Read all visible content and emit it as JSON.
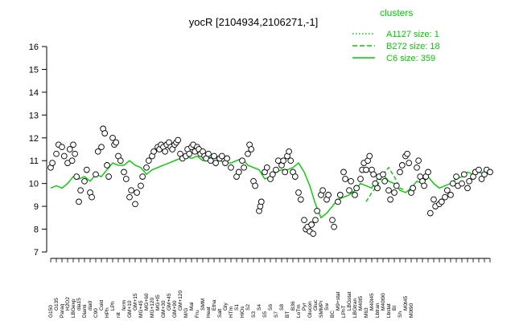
{
  "chart_data": {
    "type": "line",
    "title": "yocR [2104934,2106271,-1]",
    "xlabel": "",
    "ylabel": "",
    "ylim": [
      7,
      16
    ],
    "yticks": [
      7,
      8,
      9,
      10,
      11,
      12,
      13,
      14,
      15,
      16
    ],
    "grid": false,
    "legend": {
      "placement": "top-right",
      "title": "clusters",
      "entries": [
        {
          "label": "A1127 size: 1",
          "style": "dotted"
        },
        {
          "label": "B272 size: 18",
          "style": "dashed"
        },
        {
          "label": "C6 size: 359",
          "style": "solid"
        }
      ]
    },
    "colors": {
      "series": "#00cc00",
      "points": "#000000",
      "point_fill": "#ffffff"
    },
    "x_tick_labels": [
      "G150",
      "G135",
      "G180",
      "Paraq",
      "H2O2",
      "Oxctl",
      "LBGexp",
      "dia15",
      "Diami",
      "dia0",
      "C90",
      "Cold",
      "C30",
      "HPh",
      "LPh",
      "aero",
      "nit",
      "ferm",
      "GM+10",
      "GM+15",
      "M9+ran",
      "MG+45",
      "MG+60",
      "MG+90",
      "MG+120",
      "MG+t5",
      "GM+25",
      "GM+30",
      "GM+45",
      "GM+60",
      "GM+90",
      "GM+120",
      "M/G",
      "Mal",
      "Fru",
      "SMM",
      "Glu",
      "Heat",
      "Etha",
      "Salt",
      "Gly",
      "BMM",
      "HTm",
      "S1",
      "HiOs",
      "S2",
      "S3",
      "S4",
      "S5",
      "S6",
      "S7",
      "S8",
      "S9",
      "BT",
      "B36",
      "B80",
      "LoTm",
      "Pyr",
      "Glucon",
      "Gluc",
      "SMMPr",
      "Sw",
      "BC",
      "M9+stat",
      "LPhT",
      "LBGstat",
      "LBGtran",
      "M40t5",
      "M63",
      "M40t45",
      "Lbtran",
      "M40t90",
      "Lbstat",
      "BI",
      "Sh",
      "M0t45",
      "M0t90",
      "UNK1",
      "dia5"
    ],
    "x_tick_rows": [
      [
        "G150",
        "",
        "Paraq",
        "",
        "LBGexp",
        "",
        "Diami",
        "",
        "C90",
        "",
        "HPh",
        "",
        "nit",
        "",
        "GM+10",
        "",
        "MG+45",
        "",
        "MG+120",
        "",
        "GM+30",
        "",
        "GM+90",
        "",
        "M/G",
        "",
        "Fru",
        "",
        "Heat",
        "",
        "Salt",
        "",
        "HTm",
        "",
        "HiOs",
        "",
        "S3",
        "",
        "S5",
        "",
        "S7",
        "",
        "BT",
        "",
        "LoTm",
        "",
        "Glucon",
        "",
        "SMMPr",
        "",
        "BC",
        "",
        "LPhT",
        "",
        "LBGtran",
        "",
        "M63",
        "",
        "Lbtran",
        "",
        "Lbstat",
        "",
        "Sh",
        "",
        "M0t90"
      ],
      [
        "",
        "G135",
        "",
        "H2O2",
        "",
        "dia15",
        "",
        "dia0",
        "",
        "Cold",
        "",
        "LPh",
        "",
        "ferm",
        "",
        "GM+15",
        "",
        "MG+60",
        "",
        "MG+t5",
        "",
        "GM+45",
        "",
        "GM+120",
        "",
        "Mal",
        "",
        "SMM",
        "",
        "Etha",
        "",
        "Gly",
        "",
        "S1",
        "",
        "S2",
        "",
        "S4",
        "",
        "S6",
        "",
        "S8",
        "",
        "B36",
        "",
        "Pyr",
        "",
        "Gluc",
        "",
        "Sw",
        "",
        "M9+stat",
        "",
        "LBGstat",
        "",
        "M40t5",
        "",
        "M40t45",
        "",
        "M40t90",
        "",
        "BI",
        "",
        "M0t45",
        ""
      ]
    ],
    "c6_line": [
      9.8,
      9.9,
      9.8,
      10.0,
      10.3,
      10.2,
      10.3,
      10.1,
      10.4,
      10.3,
      10.6,
      10.9,
      10.8,
      10.8,
      11.0,
      10.8,
      10.7,
      10.4,
      10.6,
      10.7,
      10.8,
      10.9,
      11.0,
      11.1,
      11.2,
      11.1,
      11.2,
      11.0,
      11.1,
      11.2,
      11.0,
      10.9,
      10.9,
      11.0,
      11.1,
      10.8,
      10.7,
      10.6,
      10.2,
      10.3,
      10.5,
      10.6,
      10.6,
      10.7,
      10.9,
      10.5,
      9.9,
      9.1,
      8.5,
      8.7,
      9.0,
      9.3,
      9.4,
      9.5,
      9.7,
      10.0,
      9.9,
      9.8,
      10.2,
      10.4,
      10.1,
      10.0,
      9.7,
      9.6,
      9.8,
      10.1,
      10.0,
      10.3,
      10.0,
      9.8,
      9.9,
      10.0,
      10.2,
      10.3,
      10.5,
      10.4,
      10.5,
      10.4,
      10.6
    ],
    "b272_line": [
      null,
      null,
      null,
      null,
      null,
      null,
      null,
      null,
      null,
      null,
      null,
      null,
      null,
      null,
      null,
      null,
      null,
      null,
      null,
      null,
      null,
      null,
      null,
      null,
      null,
      null,
      null,
      null,
      null,
      null,
      null,
      null,
      null,
      null,
      null,
      null,
      null,
      null,
      null,
      null,
      null,
      null,
      null,
      null,
      null,
      null,
      null,
      null,
      null,
      null,
      null,
      null,
      null,
      null,
      null,
      null,
      9.2,
      9.6,
      9.9,
      10.4,
      10.7,
      10.3,
      9.8,
      9.7,
      null,
      null,
      null,
      null,
      null,
      null,
      null,
      null,
      null,
      null,
      null,
      null,
      null,
      null,
      null
    ],
    "points": [
      {
        "x": 0,
        "y": 10.7
      },
      {
        "x": 0.3,
        "y": 10.9
      },
      {
        "x": 1,
        "y": 11.3
      },
      {
        "x": 1.4,
        "y": 11.7
      },
      {
        "x": 2,
        "y": 11.6
      },
      {
        "x": 2.4,
        "y": 11.2
      },
      {
        "x": 3,
        "y": 10.9
      },
      {
        "x": 3.4,
        "y": 11.5
      },
      {
        "x": 3.8,
        "y": 11.0
      },
      {
        "x": 4,
        "y": 11.7
      },
      {
        "x": 4.3,
        "y": 11.3
      },
      {
        "x": 4.6,
        "y": 10.3
      },
      {
        "x": 5,
        "y": 9.2
      },
      {
        "x": 5.3,
        "y": 9.7
      },
      {
        "x": 6,
        "y": 10.1
      },
      {
        "x": 6.4,
        "y": 10.6
      },
      {
        "x": 7,
        "y": 9.6
      },
      {
        "x": 7.3,
        "y": 9.4
      },
      {
        "x": 8,
        "y": 10.4
      },
      {
        "x": 8.4,
        "y": 11.4
      },
      {
        "x": 9,
        "y": 11.6
      },
      {
        "x": 9.3,
        "y": 12.4
      },
      {
        "x": 9.6,
        "y": 12.2
      },
      {
        "x": 10,
        "y": 10.8
      },
      {
        "x": 10.3,
        "y": 10.3
      },
      {
        "x": 11,
        "y": 12.0
      },
      {
        "x": 11.3,
        "y": 11.7
      },
      {
        "x": 11.6,
        "y": 11.8
      },
      {
        "x": 12,
        "y": 11.2
      },
      {
        "x": 12.4,
        "y": 11.0
      },
      {
        "x": 13,
        "y": 10.5
      },
      {
        "x": 13.4,
        "y": 10.2
      },
      {
        "x": 14,
        "y": 9.4
      },
      {
        "x": 14.3,
        "y": 9.7
      },
      {
        "x": 15,
        "y": 9.1
      },
      {
        "x": 15.3,
        "y": 9.6
      },
      {
        "x": 16,
        "y": 9.9
      },
      {
        "x": 16.3,
        "y": 10.3
      },
      {
        "x": 17,
        "y": 10.7
      },
      {
        "x": 17.4,
        "y": 11.0
      },
      {
        "x": 18,
        "y": 11.2
      },
      {
        "x": 18.3,
        "y": 11.4
      },
      {
        "x": 19,
        "y": 11.6
      },
      {
        "x": 19.3,
        "y": 11.5
      },
      {
        "x": 19.6,
        "y": 11.7
      },
      {
        "x": 20,
        "y": 11.6
      },
      {
        "x": 20.3,
        "y": 11.4
      },
      {
        "x": 20.6,
        "y": 11.7
      },
      {
        "x": 21,
        "y": 11.8
      },
      {
        "x": 21.3,
        "y": 11.6
      },
      {
        "x": 21.6,
        "y": 11.5
      },
      {
        "x": 22,
        "y": 11.7
      },
      {
        "x": 22.3,
        "y": 11.8
      },
      {
        "x": 22.6,
        "y": 11.9
      },
      {
        "x": 23,
        "y": 11.3
      },
      {
        "x": 23.4,
        "y": 11.1
      },
      {
        "x": 24,
        "y": 11.2
      },
      {
        "x": 24.3,
        "y": 11.5
      },
      {
        "x": 24.6,
        "y": 11.3
      },
      {
        "x": 25,
        "y": 11.6
      },
      {
        "x": 25.3,
        "y": 11.7
      },
      {
        "x": 25.6,
        "y": 11.4
      },
      {
        "x": 26,
        "y": 11.6
      },
      {
        "x": 26.3,
        "y": 11.5
      },
      {
        "x": 26.6,
        "y": 11.3
      },
      {
        "x": 27,
        "y": 11.4
      },
      {
        "x": 27.3,
        "y": 11.2
      },
      {
        "x": 27.6,
        "y": 11.1
      },
      {
        "x": 28,
        "y": 11.3
      },
      {
        "x": 28.4,
        "y": 11.0
      },
      {
        "x": 29,
        "y": 11.2
      },
      {
        "x": 29.3,
        "y": 10.9
      },
      {
        "x": 30,
        "y": 11.1
      },
      {
        "x": 30.4,
        "y": 11.2
      },
      {
        "x": 31,
        "y": 10.9
      },
      {
        "x": 31.3,
        "y": 11.1
      },
      {
        "x": 32,
        "y": 10.7
      },
      {
        "x": 33,
        "y": 10.3
      },
      {
        "x": 33.4,
        "y": 10.5
      },
      {
        "x": 34,
        "y": 11.0
      },
      {
        "x": 34.3,
        "y": 10.7
      },
      {
        "x": 35,
        "y": 11.3
      },
      {
        "x": 35.3,
        "y": 11.7
      },
      {
        "x": 35.6,
        "y": 11.5
      },
      {
        "x": 36,
        "y": 10.1
      },
      {
        "x": 36.3,
        "y": 9.9
      },
      {
        "x": 37,
        "y": 8.8
      },
      {
        "x": 37.2,
        "y": 9.0
      },
      {
        "x": 37.4,
        "y": 9.2
      },
      {
        "x": 38,
        "y": 10.5
      },
      {
        "x": 38.4,
        "y": 10.7
      },
      {
        "x": 39,
        "y": 10.2
      },
      {
        "x": 39.4,
        "y": 10.4
      },
      {
        "x": 40,
        "y": 10.6
      },
      {
        "x": 40.4,
        "y": 11.0
      },
      {
        "x": 41,
        "y": 10.8
      },
      {
        "x": 41.3,
        "y": 11.0
      },
      {
        "x": 41.6,
        "y": 10.5
      },
      {
        "x": 42,
        "y": 11.2
      },
      {
        "x": 42.3,
        "y": 11.4
      },
      {
        "x": 42.6,
        "y": 11.0
      },
      {
        "x": 43,
        "y": 10.5
      },
      {
        "x": 43.4,
        "y": 10.3
      },
      {
        "x": 44,
        "y": 9.6
      },
      {
        "x": 44.4,
        "y": 9.3
      },
      {
        "x": 45,
        "y": 8.4
      },
      {
        "x": 45.3,
        "y": 8.0
      },
      {
        "x": 45.6,
        "y": 8.1
      },
      {
        "x": 46,
        "y": 7.9
      },
      {
        "x": 46.3,
        "y": 8.2
      },
      {
        "x": 46.6,
        "y": 7.8
      },
      {
        "x": 47,
        "y": 8.4
      },
      {
        "x": 47.3,
        "y": 8.8
      },
      {
        "x": 48,
        "y": 9.5
      },
      {
        "x": 48.3,
        "y": 9.7
      },
      {
        "x": 49,
        "y": 9.3
      },
      {
        "x": 49.3,
        "y": 9.5
      },
      {
        "x": 50,
        "y": 8.4
      },
      {
        "x": 50.3,
        "y": 8.1
      },
      {
        "x": 51,
        "y": 9.2
      },
      {
        "x": 51.4,
        "y": 9.5
      },
      {
        "x": 52,
        "y": 10.5
      },
      {
        "x": 52.3,
        "y": 10.2
      },
      {
        "x": 53,
        "y": 9.7
      },
      {
        "x": 53.3,
        "y": 10.1
      },
      {
        "x": 54,
        "y": 9.5
      },
      {
        "x": 54.3,
        "y": 9.8
      },
      {
        "x": 55,
        "y": 10.2
      },
      {
        "x": 55.3,
        "y": 10.6
      },
      {
        "x": 55.6,
        "y": 10.9
      },
      {
        "x": 56,
        "y": 10.6
      },
      {
        "x": 56.3,
        "y": 11.0
      },
      {
        "x": 56.6,
        "y": 11.2
      },
      {
        "x": 57,
        "y": 10.6
      },
      {
        "x": 57.3,
        "y": 10.4
      },
      {
        "x": 57.6,
        "y": 10.0
      },
      {
        "x": 58,
        "y": 9.8
      },
      {
        "x": 58.3,
        "y": 10.3
      },
      {
        "x": 59,
        "y": 10.4
      },
      {
        "x": 59.3,
        "y": 10.1
      },
      {
        "x": 60,
        "y": 9.7
      },
      {
        "x": 60.3,
        "y": 9.3
      },
      {
        "x": 61,
        "y": 9.6
      },
      {
        "x": 61.4,
        "y": 9.9
      },
      {
        "x": 62,
        "y": 10.5
      },
      {
        "x": 62.4,
        "y": 10.8
      },
      {
        "x": 63,
        "y": 11.2
      },
      {
        "x": 63.3,
        "y": 11.3
      },
      {
        "x": 63.6,
        "y": 10.9
      },
      {
        "x": 64,
        "y": 9.6
      },
      {
        "x": 64.3,
        "y": 9.8
      },
      {
        "x": 65,
        "y": 10.7
      },
      {
        "x": 65.3,
        "y": 11.0
      },
      {
        "x": 65.6,
        "y": 10.3
      },
      {
        "x": 66,
        "y": 10.1
      },
      {
        "x": 66.3,
        "y": 9.9
      },
      {
        "x": 66.6,
        "y": 10.3
      },
      {
        "x": 67,
        "y": 10.5
      },
      {
        "x": 67.4,
        "y": 8.7
      },
      {
        "x": 68,
        "y": 9.3
      },
      {
        "x": 68.3,
        "y": 9.0
      },
      {
        "x": 69,
        "y": 9.1
      },
      {
        "x": 69.4,
        "y": 9.2
      },
      {
        "x": 70,
        "y": 9.4
      },
      {
        "x": 70.4,
        "y": 9.7
      },
      {
        "x": 71,
        "y": 9.5
      },
      {
        "x": 71.4,
        "y": 10.0
      },
      {
        "x": 72,
        "y": 10.3
      },
      {
        "x": 72.3,
        "y": 9.9
      },
      {
        "x": 73,
        "y": 10.0
      },
      {
        "x": 73.4,
        "y": 10.4
      },
      {
        "x": 74,
        "y": 9.8
      },
      {
        "x": 74.3,
        "y": 10.1
      },
      {
        "x": 75,
        "y": 10.3
      },
      {
        "x": 75.4,
        "y": 10.5
      },
      {
        "x": 76,
        "y": 10.6
      },
      {
        "x": 76.5,
        "y": 10.2
      },
      {
        "x": 77,
        "y": 10.4
      },
      {
        "x": 77.4,
        "y": 10.6
      },
      {
        "x": 78,
        "y": 10.5
      }
    ]
  }
}
